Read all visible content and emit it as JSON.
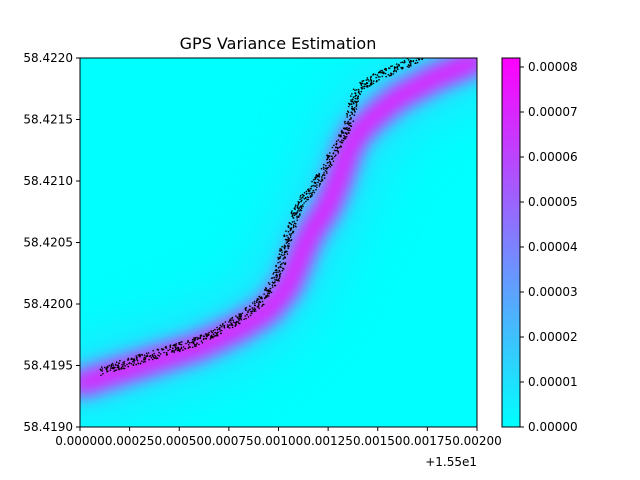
{
  "chart_data": {
    "type": "heatmap",
    "title": "GPS Variance Estimation",
    "xlabel": "",
    "ylabel": "",
    "x_offset_label": "+1.55e1",
    "xlim": [
      0.0,
      0.002
    ],
    "ylim": [
      58.419,
      58.422
    ],
    "x_ticks": [
      0.0,
      0.00025,
      0.0005,
      0.00075,
      0.001,
      0.00125,
      0.0015,
      0.00175,
      0.002
    ],
    "x_tick_labels": [
      "0.00000",
      "0.00025",
      "0.00050",
      "0.00075",
      "0.00100",
      "0.00125",
      "0.00150",
      "0.00175",
      "0.00200"
    ],
    "y_ticks": [
      58.419,
      58.4195,
      58.42,
      58.4205,
      58.421,
      58.4215,
      58.422
    ],
    "y_tick_labels": [
      "58.4190",
      "58.4195",
      "58.4200",
      "58.4205",
      "58.4210",
      "58.4215",
      "58.4220"
    ],
    "colorbar": {
      "colormap": "cool",
      "range": [
        0.0,
        8.2e-05
      ],
      "ticks": [
        0.0,
        1e-05,
        2e-05,
        3e-05,
        4e-05,
        5e-05,
        6e-05,
        7e-05,
        8e-05
      ],
      "tick_labels": [
        "0.00000",
        "0.00001",
        "0.00002",
        "0.00003",
        "0.00004",
        "0.00005",
        "0.00006",
        "0.00007",
        "0.00008"
      ],
      "color_min": "#00ffff",
      "color_max": "#ff00ff"
    },
    "high_variance_band": {
      "x": [
        0.0,
        0.0003,
        0.0006,
        0.0008,
        0.00095,
        0.00105,
        0.0011,
        0.00115,
        0.00125,
        0.0013,
        0.00135,
        0.0014,
        0.0015,
        0.0016,
        0.0018,
        0.002
      ],
      "y": [
        58.41935,
        58.4195,
        58.41965,
        58.4198,
        58.41995,
        58.42015,
        58.42035,
        58.42055,
        58.4208,
        58.421,
        58.42125,
        58.4214,
        58.42155,
        58.42168,
        58.42185,
        58.42198
      ]
    },
    "gps_track": {
      "x": [
        0.0001,
        0.0002,
        0.0003,
        0.0004,
        0.0005,
        0.0006,
        0.0007,
        0.0008,
        0.0009,
        0.00095,
        0.001,
        0.00103,
        0.00107,
        0.0011,
        0.00115,
        0.0012,
        0.00125,
        0.0013,
        0.00135,
        0.00138,
        0.0014,
        0.00145,
        0.0015,
        0.0016,
        0.0017,
        0.0018,
        0.00185,
        0.0019
      ],
      "y": [
        58.41945,
        58.4195,
        58.41955,
        58.4196,
        58.41965,
        58.4197,
        58.41978,
        58.41988,
        58.42,
        58.4201,
        58.42025,
        58.42045,
        58.42065,
        58.4208,
        58.4209,
        58.421,
        58.42115,
        58.4213,
        58.42145,
        58.42165,
        58.42175,
        58.4218,
        58.42185,
        58.42192,
        58.422,
        58.42208,
        58.42214,
        58.42218
      ],
      "color": "#000000"
    }
  }
}
